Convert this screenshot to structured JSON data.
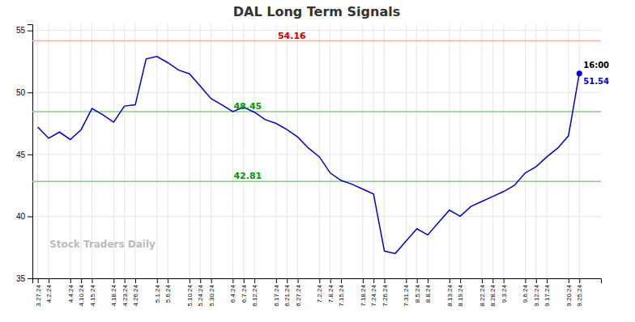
{
  "chart_data": {
    "type": "line",
    "title": "DAL Long Term Signals",
    "watermark": "Stock Traders Daily",
    "categories": [
      "3.27.24",
      "4.2.24",
      null,
      "4.4.24",
      "4.10.24",
      "4.15.24",
      null,
      "4.18.24",
      "4.23.24",
      "4.26.24",
      null,
      "5.1.24",
      "5.6.24",
      null,
      "5.10.24",
      "5.24.24",
      "5.30.24",
      null,
      "6.4.24",
      "6.7.24",
      "6.12.24",
      null,
      "6.17.24",
      "6.21.24",
      "6.27.24",
      null,
      "7.2.24",
      "7.8.24",
      "7.15.24",
      null,
      "7.18.24",
      "7.24.24",
      "7.26.24",
      null,
      "7.31.24",
      "8.5.24",
      "8.8.24",
      null,
      "8.13.24",
      "8.19.24",
      null,
      "8.22.24",
      "8.28.24",
      "9.3.24",
      null,
      "9.6.24",
      "9.12.24",
      "9.17.24",
      null,
      "9.20.24",
      "9.25.24"
    ],
    "values": [
      47.2,
      46.3,
      46.8,
      46.2,
      47.0,
      48.7,
      48.2,
      47.6,
      48.9,
      49.0,
      52.7,
      52.9,
      52.4,
      51.8,
      51.5,
      50.5,
      49.5,
      49.0,
      48.45,
      48.8,
      48.4,
      47.8,
      47.5,
      47.0,
      46.4,
      45.5,
      44.8,
      43.5,
      42.9,
      42.6,
      42.2,
      41.8,
      37.2,
      37.0,
      38.0,
      39.0,
      38.5,
      39.5,
      40.5,
      40.0,
      40.8,
      41.2,
      41.6,
      42.0,
      42.5,
      43.5,
      44.0,
      44.8,
      45.5,
      46.5,
      51.54
    ],
    "color": "#0000cc",
    "hlines": [
      {
        "value": 54.16,
        "label": "54.16",
        "color": "#ffaaaa"
      },
      {
        "value": 48.45,
        "label": "48.45",
        "color": "#88cc88"
      },
      {
        "value": 42.81,
        "label": "42.81",
        "color": "#88cc88"
      }
    ],
    "last_price": {
      "value": 51.54,
      "label": "51.54",
      "time": "16:00"
    },
    "ylim": [
      35,
      55.5
    ],
    "yticks": [
      35,
      40,
      45,
      50,
      55
    ],
    "grid": true
  }
}
